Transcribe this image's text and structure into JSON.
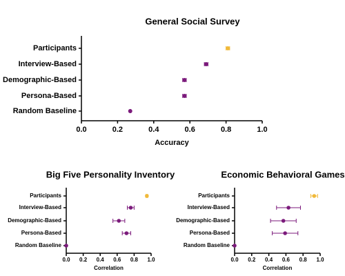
{
  "chart_data": [
    {
      "type": "dot",
      "title": "General Social Survey",
      "x_label": "Accuracy",
      "categories": [
        "Participants",
        "Interview-Based",
        "Demographic-Based",
        "Persona-Based",
        "Random Baseline"
      ],
      "values": [
        0.81,
        0.69,
        0.57,
        0.57,
        0.27
      ],
      "errors": [
        0.01,
        0.01,
        0.01,
        0.01,
        0
      ],
      "colors": [
        "#f0b93a",
        "#7b1a7b",
        "#7b1a7b",
        "#7b1a7b",
        "#7b1a7b"
      ],
      "xlim": [
        0,
        1
      ],
      "xticks": [
        {
          "value": 0,
          "label": "0.0"
        },
        0.2,
        0.4,
        0.6,
        0.8,
        {
          "value": 1,
          "label": "1.0"
        }
      ]
    },
    {
      "type": "dot",
      "title": "Big Five Personality Inventory",
      "x_label": "Correlation",
      "categories": [
        "Participants",
        "Interview-Based",
        "Demographic-Based",
        "Persona-Based",
        "Random Baseline"
      ],
      "values": [
        0.95,
        0.76,
        0.62,
        0.71,
        0.0
      ],
      "errors": [
        0.01,
        0.04,
        0.07,
        0.05,
        0
      ],
      "colors": [
        "#f0b93a",
        "#7b1a7b",
        "#7b1a7b",
        "#7b1a7b",
        "#7b1a7b"
      ],
      "xlim": [
        0,
        1
      ],
      "xticks": [
        {
          "value": 0,
          "label": "0.0"
        },
        0.2,
        0.4,
        0.6,
        0.8,
        {
          "value": 1,
          "label": "1.0"
        }
      ]
    },
    {
      "type": "dot",
      "title": "Economic Behavioral Games",
      "x_label": "Correlation",
      "categories": [
        "Participants",
        "Interview-Based",
        "Demographic-Based",
        "Persona-Based",
        "Random Baseline"
      ],
      "values": [
        0.93,
        0.63,
        0.57,
        0.59,
        0.0
      ],
      "errors": [
        0.04,
        0.14,
        0.15,
        0.15,
        0
      ],
      "colors": [
        "#f0b93a",
        "#7b1a7b",
        "#7b1a7b",
        "#7b1a7b",
        "#7b1a7b"
      ],
      "xlim": [
        0,
        1
      ],
      "xticks": [
        {
          "value": 0,
          "label": "0.0"
        },
        0.2,
        0.4,
        0.6,
        0.8,
        {
          "value": 1,
          "label": "1.0"
        }
      ]
    }
  ]
}
